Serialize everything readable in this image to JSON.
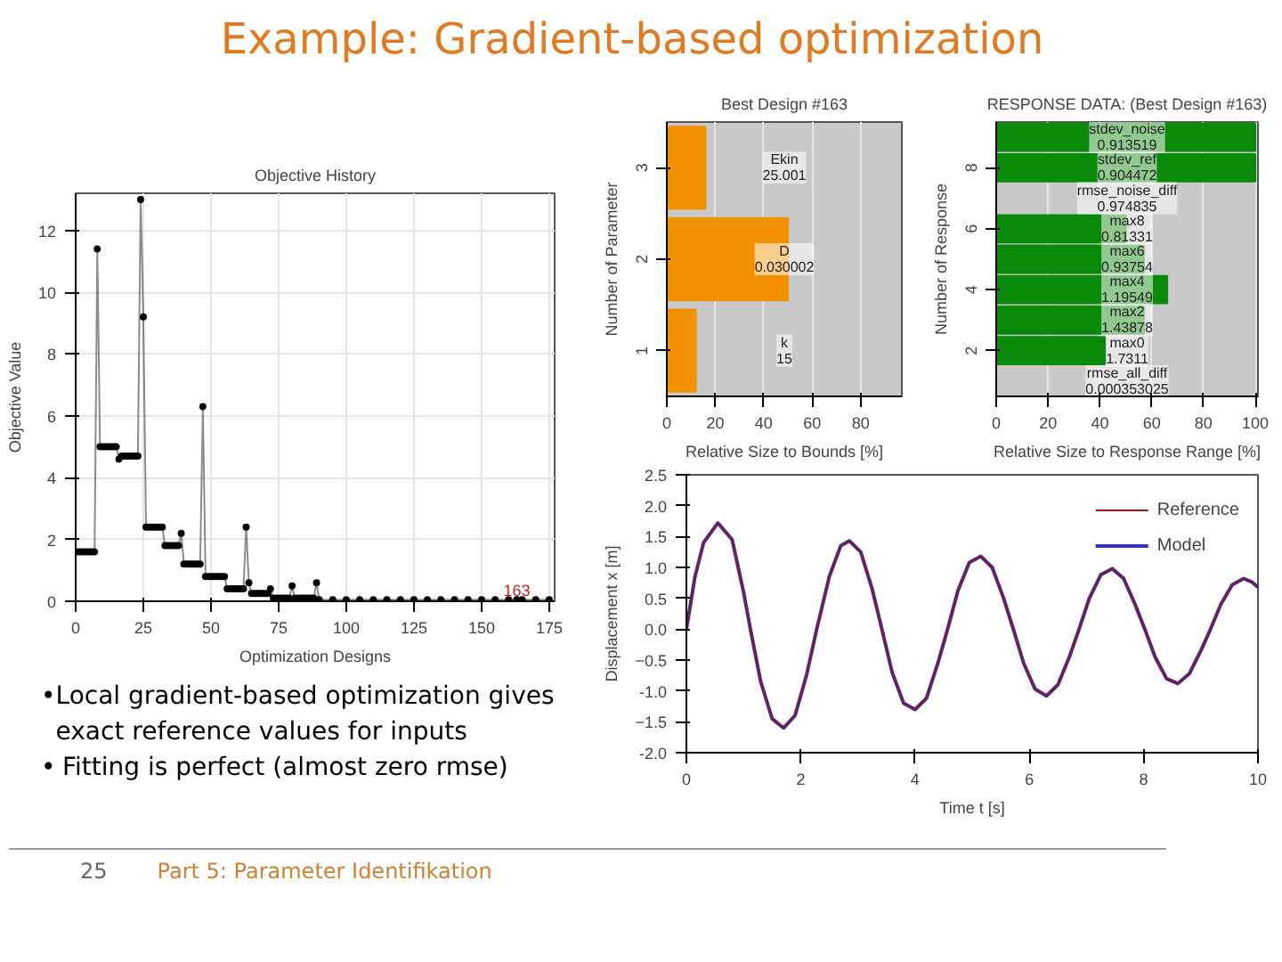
{
  "chart_data": [
    {
      "type": "other",
      "title": "Example: Gradient-based optimization",
      "annotations": [
        "•",
        "Local gradient-based optimization gives exact reference values for inputs",
        "•",
        "Fitting is perfect (almost zero rmse)",
        "25",
        "Part 5: Parameter Identifikation"
      ]
    },
    {
      "type": "line",
      "title": "Objective History",
      "xlabel": "Optimization Designs",
      "ylabel": "Objective Value",
      "xlim": [
        0,
        177
      ],
      "ylim": [
        0,
        13.2
      ],
      "xticks": [
        0,
        25,
        50,
        75,
        100,
        125,
        150,
        175
      ],
      "yticks": [
        0,
        2,
        4,
        6,
        8,
        10,
        12
      ],
      "grid": true,
      "marker": "circle",
      "series": [
        {
          "color": "#000000",
          "x": [
            1,
            2,
            3,
            4,
            5,
            6,
            7,
            8,
            9,
            10,
            11,
            12,
            13,
            14,
            15,
            16,
            17,
            18,
            19,
            20,
            21,
            22,
            23,
            24,
            25,
            26,
            27,
            28,
            29,
            30,
            31,
            32,
            33,
            34,
            35,
            36,
            37,
            38,
            39,
            40,
            41,
            42,
            43,
            44,
            45,
            46,
            47,
            48,
            49,
            50,
            51,
            52,
            53,
            54,
            55,
            56,
            57,
            58,
            59,
            60,
            61,
            62,
            63,
            64,
            65,
            66,
            67,
            68,
            69,
            70,
            71,
            72,
            73,
            74,
            75,
            76,
            77,
            78,
            79,
            80,
            81,
            82,
            83,
            84,
            85,
            86,
            87,
            88,
            89,
            90,
            95,
            100,
            105,
            110,
            115,
            120,
            125,
            130,
            135,
            140,
            145,
            150,
            155,
            160,
            163,
            165,
            170,
            175
          ],
          "values": [
            1.6,
            1.6,
            1.6,
            1.6,
            1.6,
            1.6,
            1.6,
            11.4,
            5.0,
            5.0,
            5.0,
            5.0,
            5.0,
            5.0,
            5.0,
            4.6,
            4.7,
            4.7,
            4.7,
            4.7,
            4.7,
            4.7,
            4.7,
            13.0,
            9.2,
            2.4,
            2.4,
            2.4,
            2.4,
            2.4,
            2.4,
            2.4,
            1.8,
            1.8,
            1.8,
            1.8,
            1.8,
            1.8,
            2.2,
            1.2,
            1.2,
            1.2,
            1.2,
            1.2,
            1.2,
            1.2,
            6.3,
            0.8,
            0.8,
            0.8,
            0.8,
            0.8,
            0.8,
            0.8,
            0.8,
            0.4,
            0.4,
            0.4,
            0.4,
            0.4,
            0.4,
            0.4,
            2.4,
            0.6,
            0.25,
            0.25,
            0.25,
            0.25,
            0.25,
            0.25,
            0.25,
            0.4,
            0.1,
            0.1,
            0.1,
            0.1,
            0.1,
            0.1,
            0.1,
            0.5,
            0.1,
            0.1,
            0.1,
            0.1,
            0.1,
            0.1,
            0.1,
            0.1,
            0.6,
            0.05,
            0.05,
            0.05,
            0.05,
            0.05,
            0.05,
            0.05,
            0.05,
            0.05,
            0.05,
            0.05,
            0.05,
            0.05,
            0.05,
            0.05,
            0.05,
            0.05,
            0.05,
            0.05
          ]
        }
      ],
      "annotations": [
        {
          "text": "163",
          "x": 163,
          "y": 0.05
        }
      ]
    },
    {
      "type": "bar",
      "orientation": "horizontal",
      "title": "Best Design #163",
      "xlabel": "Relative Size to Bounds [%]",
      "ylabel": "Number of Parameter",
      "categories": [
        "3",
        "2",
        "1"
      ],
      "values": [
        16,
        50,
        12
      ],
      "color": "#f39200",
      "xlim": [
        0,
        97
      ],
      "xticks": [
        0,
        20,
        40,
        60,
        80
      ],
      "grid": "x",
      "annotations": [
        "Ekin\n25.001",
        "D\n0.030002",
        "k\n15"
      ]
    },
    {
      "type": "bar",
      "orientation": "horizontal",
      "title": "RESPONSE DATA: (Best Design #163)",
      "xlabel": "Relative Size to Response Range [%]",
      "ylabel": "Number of Response",
      "categories": [
        null,
        "8",
        null,
        "6",
        null,
        "4",
        null,
        "2",
        null
      ],
      "values": [
        100,
        100,
        0,
        50,
        57,
        66,
        57,
        42,
        0
      ],
      "color": "#0a8a0a",
      "xlim": [
        0,
        101
      ],
      "xticks": [
        0,
        20,
        40,
        60,
        80,
        100
      ],
      "grid": "x",
      "annotations": [
        "stdev_noise\n0.913519",
        "stdev_ref\n0.904472",
        "rmse_noise_diff\n0.974835",
        "max8\n0.81331",
        "max6\n0.93754",
        "max4\n1.19549",
        "max2\n1.43878",
        "max0\n1.7311",
        "rmse_all_diff\n0.000353025"
      ]
    },
    {
      "type": "line",
      "xlabel": "Time t [s]",
      "ylabel": "Displacement x [m]",
      "xlim": [
        0,
        10
      ],
      "ylim": [
        -2,
        2.5
      ],
      "xticks": [
        0,
        2,
        4,
        6,
        8,
        10
      ],
      "yticks": [
        {
          "value": -2,
          "label": "-2.0"
        },
        -1.5,
        {
          "value": -1,
          "label": "-1.0"
        },
        -0.5,
        {
          "value": 0,
          "label": "0.0"
        },
        0.5,
        {
          "value": 1,
          "label": "1.0"
        },
        1.5,
        {
          "value": 2,
          "label": "2.0"
        },
        2.5
      ],
      "legend": "top right",
      "series": [
        {
          "name": "Reference",
          "color": "#8b1a1a",
          "x": [
            0,
            0.15,
            0.3,
            0.55,
            0.8,
            1.0,
            1.12,
            1.3,
            1.5,
            1.7,
            1.9,
            2.1,
            2.28,
            2.5,
            2.7,
            2.85,
            3.05,
            3.25,
            3.42,
            3.6,
            3.8,
            4.0,
            4.2,
            4.4,
            4.57,
            4.75,
            4.95,
            5.15,
            5.35,
            5.55,
            5.72,
            5.9,
            6.1,
            6.3,
            6.5,
            6.7,
            6.87,
            7.05,
            7.25,
            7.45,
            7.65,
            7.85,
            8.02,
            8.2,
            8.4,
            8.6,
            8.8,
            9.0,
            9.17,
            9.35,
            9.55,
            9.75,
            9.9,
            10
          ],
          "values": [
            0,
            0.85,
            1.4,
            1.72,
            1.45,
            0.6,
            0,
            -0.85,
            -1.45,
            -1.6,
            -1.4,
            -0.75,
            0,
            0.85,
            1.35,
            1.43,
            1.25,
            0.65,
            0,
            -0.7,
            -1.2,
            -1.3,
            -1.12,
            -0.55,
            0,
            0.62,
            1.08,
            1.18,
            1.0,
            0.5,
            0,
            -0.55,
            -0.97,
            -1.08,
            -0.9,
            -0.45,
            0,
            0.5,
            0.88,
            0.98,
            0.82,
            0.4,
            0,
            -0.45,
            -0.8,
            -0.88,
            -0.72,
            -0.35,
            0,
            0.4,
            0.72,
            0.82,
            0.76,
            0.68
          ]
        },
        {
          "name": "Model",
          "color": "#3030c8",
          "x": [
            0,
            0.15,
            0.3,
            0.55,
            0.8,
            1.0,
            1.12,
            1.3,
            1.5,
            1.7,
            1.9,
            2.1,
            2.28,
            2.5,
            2.7,
            2.85,
            3.05,
            3.25,
            3.42,
            3.6,
            3.8,
            4.0,
            4.2,
            4.4,
            4.57,
            4.75,
            4.95,
            5.15,
            5.35,
            5.55,
            5.72,
            5.9,
            6.1,
            6.3,
            6.5,
            6.7,
            6.87,
            7.05,
            7.25,
            7.45,
            7.65,
            7.85,
            8.02,
            8.2,
            8.4,
            8.6,
            8.8,
            9.0,
            9.17,
            9.35,
            9.55,
            9.75,
            9.9,
            10
          ],
          "values": [
            0,
            0.85,
            1.4,
            1.72,
            1.45,
            0.6,
            0,
            -0.85,
            -1.45,
            -1.6,
            -1.4,
            -0.75,
            0,
            0.85,
            1.35,
            1.43,
            1.25,
            0.65,
            0,
            -0.7,
            -1.2,
            -1.3,
            -1.12,
            -0.55,
            0,
            0.62,
            1.08,
            1.18,
            1.0,
            0.5,
            0,
            -0.55,
            -0.97,
            -1.08,
            -0.9,
            -0.45,
            0,
            0.5,
            0.88,
            0.98,
            0.82,
            0.4,
            0,
            -0.45,
            -0.8,
            -0.88,
            -0.72,
            -0.35,
            0,
            0.4,
            0.72,
            0.82,
            0.76,
            0.68
          ]
        }
      ]
    }
  ]
}
